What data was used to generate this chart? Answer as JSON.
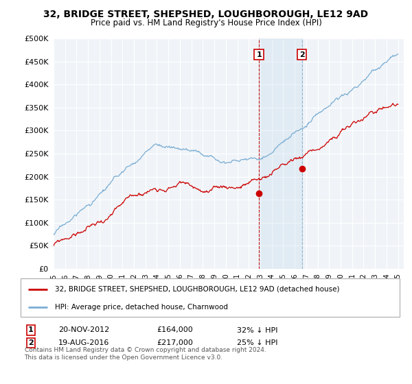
{
  "title": "32, BRIDGE STREET, SHEPSHED, LOUGHBOROUGH, LE12 9AD",
  "subtitle": "Price paid vs. HM Land Registry's House Price Index (HPI)",
  "ylim": [
    0,
    500000
  ],
  "yticks": [
    0,
    50000,
    100000,
    150000,
    200000,
    250000,
    300000,
    350000,
    400000,
    450000,
    500000
  ],
  "background_color": "#ffffff",
  "plot_bg_color": "#f0f4f8",
  "grid_color": "#ffffff",
  "hpi_color": "#7aadd4",
  "price_color": "#cc0000",
  "t1_year": 2012.89,
  "t2_year": 2016.63,
  "transaction1_date": "20-NOV-2012",
  "transaction1_price": 164000,
  "transaction2_date": "19-AUG-2016",
  "transaction2_price": 217000,
  "transaction1_pct": "32% ↓ HPI",
  "transaction2_pct": "25% ↓ HPI",
  "legend_label_price": "32, BRIDGE STREET, SHEPSHED, LOUGHBOROUGH, LE12 9AD (detached house)",
  "legend_label_hpi": "HPI: Average price, detached house, Charnwood",
  "footer": "Contains HM Land Registry data © Crown copyright and database right 2024.\nThis data is licensed under the Open Government Licence v3.0."
}
